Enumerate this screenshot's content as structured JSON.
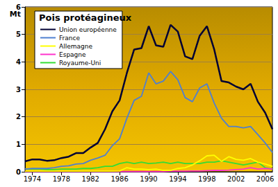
{
  "chart_data": {
    "type": "line",
    "title": "Pois protéagineux",
    "y_label": "Mt",
    "x": [
      1973,
      1974,
      1975,
      1976,
      1977,
      1978,
      1979,
      1980,
      1981,
      1982,
      1983,
      1984,
      1985,
      1986,
      1987,
      1988,
      1989,
      1990,
      1991,
      1992,
      1993,
      1994,
      1995,
      1996,
      1997,
      1998,
      1999,
      2000,
      2001,
      2002,
      2003,
      2004,
      2005,
      2006,
      2007
    ],
    "series": [
      {
        "name": "Union européenne",
        "color": "#000033",
        "values": [
          0.38,
          0.45,
          0.45,
          0.4,
          0.42,
          0.5,
          0.55,
          0.68,
          0.68,
          0.88,
          1.05,
          1.55,
          2.2,
          2.6,
          3.6,
          4.45,
          4.5,
          5.3,
          4.6,
          4.55,
          5.35,
          5.1,
          4.2,
          4.1,
          4.95,
          5.3,
          4.45,
          3.3,
          3.25,
          3.1,
          3.0,
          3.2,
          2.55,
          2.15,
          1.55
        ]
      },
      {
        "name": "France",
        "color": "#4f7fd0",
        "values": [
          0.1,
          0.12,
          0.12,
          0.12,
          0.15,
          0.2,
          0.22,
          0.28,
          0.3,
          0.42,
          0.5,
          0.6,
          0.95,
          1.2,
          1.95,
          2.6,
          2.75,
          3.6,
          3.2,
          3.3,
          3.65,
          3.35,
          2.7,
          2.55,
          3.05,
          3.2,
          2.5,
          1.95,
          1.65,
          1.65,
          1.6,
          1.65,
          1.35,
          1.05,
          0.7
        ]
      },
      {
        "name": "Allemagne",
        "color": "#ffff00",
        "values": [
          0.02,
          0.02,
          0.02,
          0.02,
          0.02,
          0.02,
          0.02,
          0.02,
          0.02,
          0.02,
          0.02,
          0.02,
          0.02,
          0.03,
          0.15,
          0.1,
          0.1,
          0.08,
          0.1,
          0.05,
          0.05,
          0.12,
          0.15,
          0.25,
          0.4,
          0.58,
          0.6,
          0.38,
          0.55,
          0.45,
          0.42,
          0.48,
          0.35,
          0.28,
          0.2
        ]
      },
      {
        "name": "Espagne",
        "color": "#ff33cc",
        "values": [
          0.01,
          0.01,
          0.01,
          0.01,
          0.01,
          0.01,
          0.01,
          0.01,
          0.01,
          0.01,
          0.01,
          0.01,
          0.01,
          0.01,
          0.01,
          0.01,
          0.01,
          0.01,
          0.01,
          0.01,
          0.02,
          0.02,
          0.02,
          0.03,
          0.03,
          0.04,
          0.05,
          0.05,
          0.06,
          0.08,
          0.1,
          0.15,
          0.1,
          0.12,
          0.1
        ]
      },
      {
        "name": "Royaume-Uni",
        "color": "#33dd33",
        "values": [
          0.1,
          0.1,
          0.1,
          0.08,
          0.08,
          0.1,
          0.1,
          0.1,
          0.12,
          0.12,
          0.15,
          0.2,
          0.2,
          0.3,
          0.35,
          0.3,
          0.35,
          0.3,
          0.32,
          0.35,
          0.3,
          0.35,
          0.3,
          0.3,
          0.3,
          0.35,
          0.35,
          0.4,
          0.35,
          0.3,
          0.25,
          0.3,
          0.35,
          0.15,
          0.1
        ]
      }
    ],
    "xlim": [
      1973,
      2007
    ],
    "xticks": [
      1974,
      1978,
      1982,
      1986,
      1990,
      1994,
      1998,
      2002,
      2006
    ],
    "ylim": [
      0,
      6
    ],
    "yticks": [
      0,
      1,
      2,
      3,
      4,
      5,
      6
    ],
    "grid": true,
    "legend": "upper left"
  }
}
